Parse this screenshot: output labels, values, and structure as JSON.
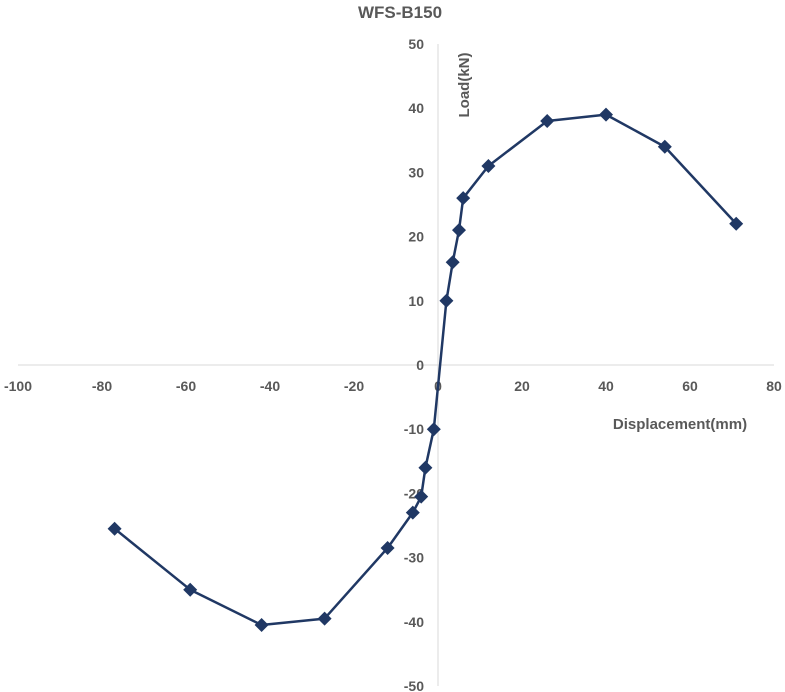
{
  "chart_data": {
    "type": "scatter",
    "title": "WFS-B150",
    "xlabel": "Displacement(mm)",
    "ylabel": "Load(kN)",
    "xlim": [
      -100,
      80
    ],
    "ylim": [
      -50,
      50
    ],
    "x_ticks": [
      -100,
      -80,
      -60,
      -40,
      -20,
      0,
      20,
      40,
      60,
      80
    ],
    "y_ticks": [
      -50,
      -40,
      -30,
      -20,
      -10,
      0,
      10,
      20,
      30,
      40,
      50
    ],
    "line_color": "#203864",
    "marker": "diamond",
    "grid": false,
    "series": [
      {
        "x": [
          -77,
          -59,
          -42,
          -27,
          -12,
          -6,
          -4,
          -3,
          -1,
          2,
          3.5,
          5,
          6,
          12,
          26,
          40,
          54,
          71
        ],
        "y": [
          -25.5,
          -35,
          -40.5,
          -39.5,
          -28.5,
          -23,
          -20.5,
          -16,
          -10,
          10,
          16,
          21,
          26,
          31,
          38,
          39,
          34,
          22
        ]
      }
    ]
  }
}
